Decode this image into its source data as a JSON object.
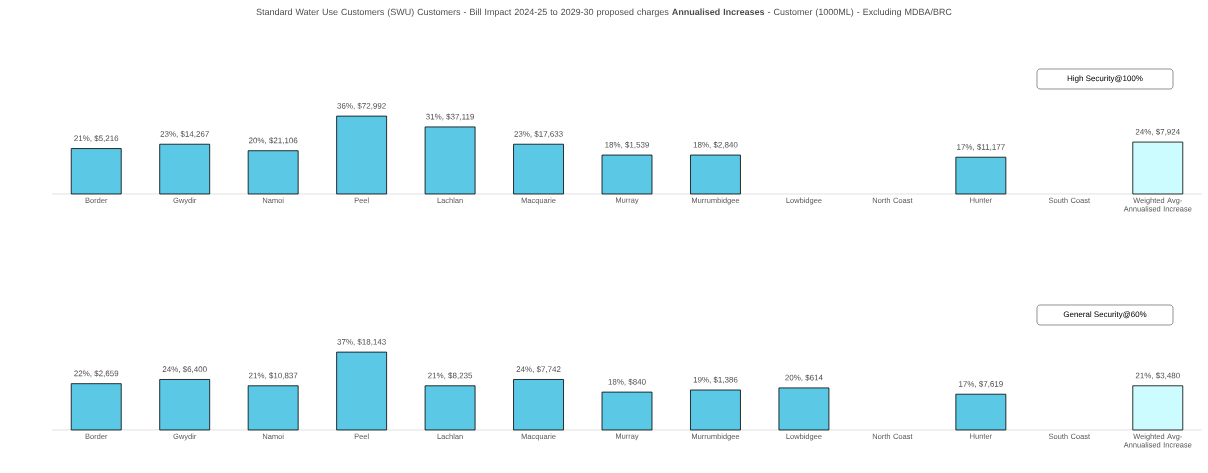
{
  "chart_data": [
    {
      "type": "bar",
      "title": "Standard Water Use Customers (SWU) Customers - Bill Impact 2024-25 to 2029-30 proposed charges **Annualised Increases** - Customer (1000ML) - Excluding MDBA/BRC",
      "annotations": [
        "High Security@100%"
      ],
      "categories": [
        "Border",
        "Gwydir",
        "Namoi",
        "Peel",
        "Lachlan",
        "Macquarie",
        "Murray",
        "Murrumbidgee",
        "Lowbidgee",
        "North Coast",
        "Hunter",
        "South Coast",
        "Weighted Avg-Annualised Increase"
      ],
      "values": [
        21,
        23,
        20,
        36,
        31,
        23,
        18,
        18,
        null,
        null,
        17,
        null,
        24
      ],
      "value_labels": [
        "21%, $5,216",
        "23%, $14,267",
        "20%, $21,106",
        "36%, $72,992",
        "31%, $37,119",
        "23%, $17,633",
        "18%, $1,539",
        "18%, $2,840",
        null,
        null,
        "17%, $11,177",
        null,
        "24%, $7,924"
      ],
      "colors": [
        "#5bc8e6",
        "#5bc8e6",
        "#5bc8e6",
        "#5bc8e6",
        "#5bc8e6",
        "#5bc8e6",
        "#5bc8e6",
        "#5bc8e6",
        "#5bc8e6",
        "#5bc8e6",
        "#5bc8e6",
        "#5bc8e6",
        "#ccfcff"
      ]
    },
    {
      "type": "bar",
      "annotations": [
        "General Security@60%"
      ],
      "categories": [
        "Border",
        "Gwydir",
        "Namoi",
        "Peel",
        "Lachlan",
        "Macquarie",
        "Murray",
        "Murrumbidgee",
        "Lowbidgee",
        "North Coast",
        "Hunter",
        "South Coast",
        "Weighted Avg-Annualised Increase"
      ],
      "values": [
        22,
        24,
        21,
        37,
        21,
        24,
        18,
        19,
        20,
        null,
        17,
        null,
        21
      ],
      "value_labels": [
        "22%, $2,659",
        "24%, $6,400",
        "21%, $10,837",
        "37%, $18,143",
        "21%, $8,235",
        "24%, $7,742",
        "18%, $840",
        "19%, $1,386",
        "20%, $614",
        null,
        "17%, $7,619",
        null,
        "21%, $3,480"
      ],
      "colors": [
        "#5bc8e6",
        "#5bc8e6",
        "#5bc8e6",
        "#5bc8e6",
        "#5bc8e6",
        "#5bc8e6",
        "#5bc8e6",
        "#5bc8e6",
        "#5bc8e6",
        "#5bc8e6",
        "#5bc8e6",
        "#5bc8e6",
        "#ccfcff"
      ]
    }
  ]
}
